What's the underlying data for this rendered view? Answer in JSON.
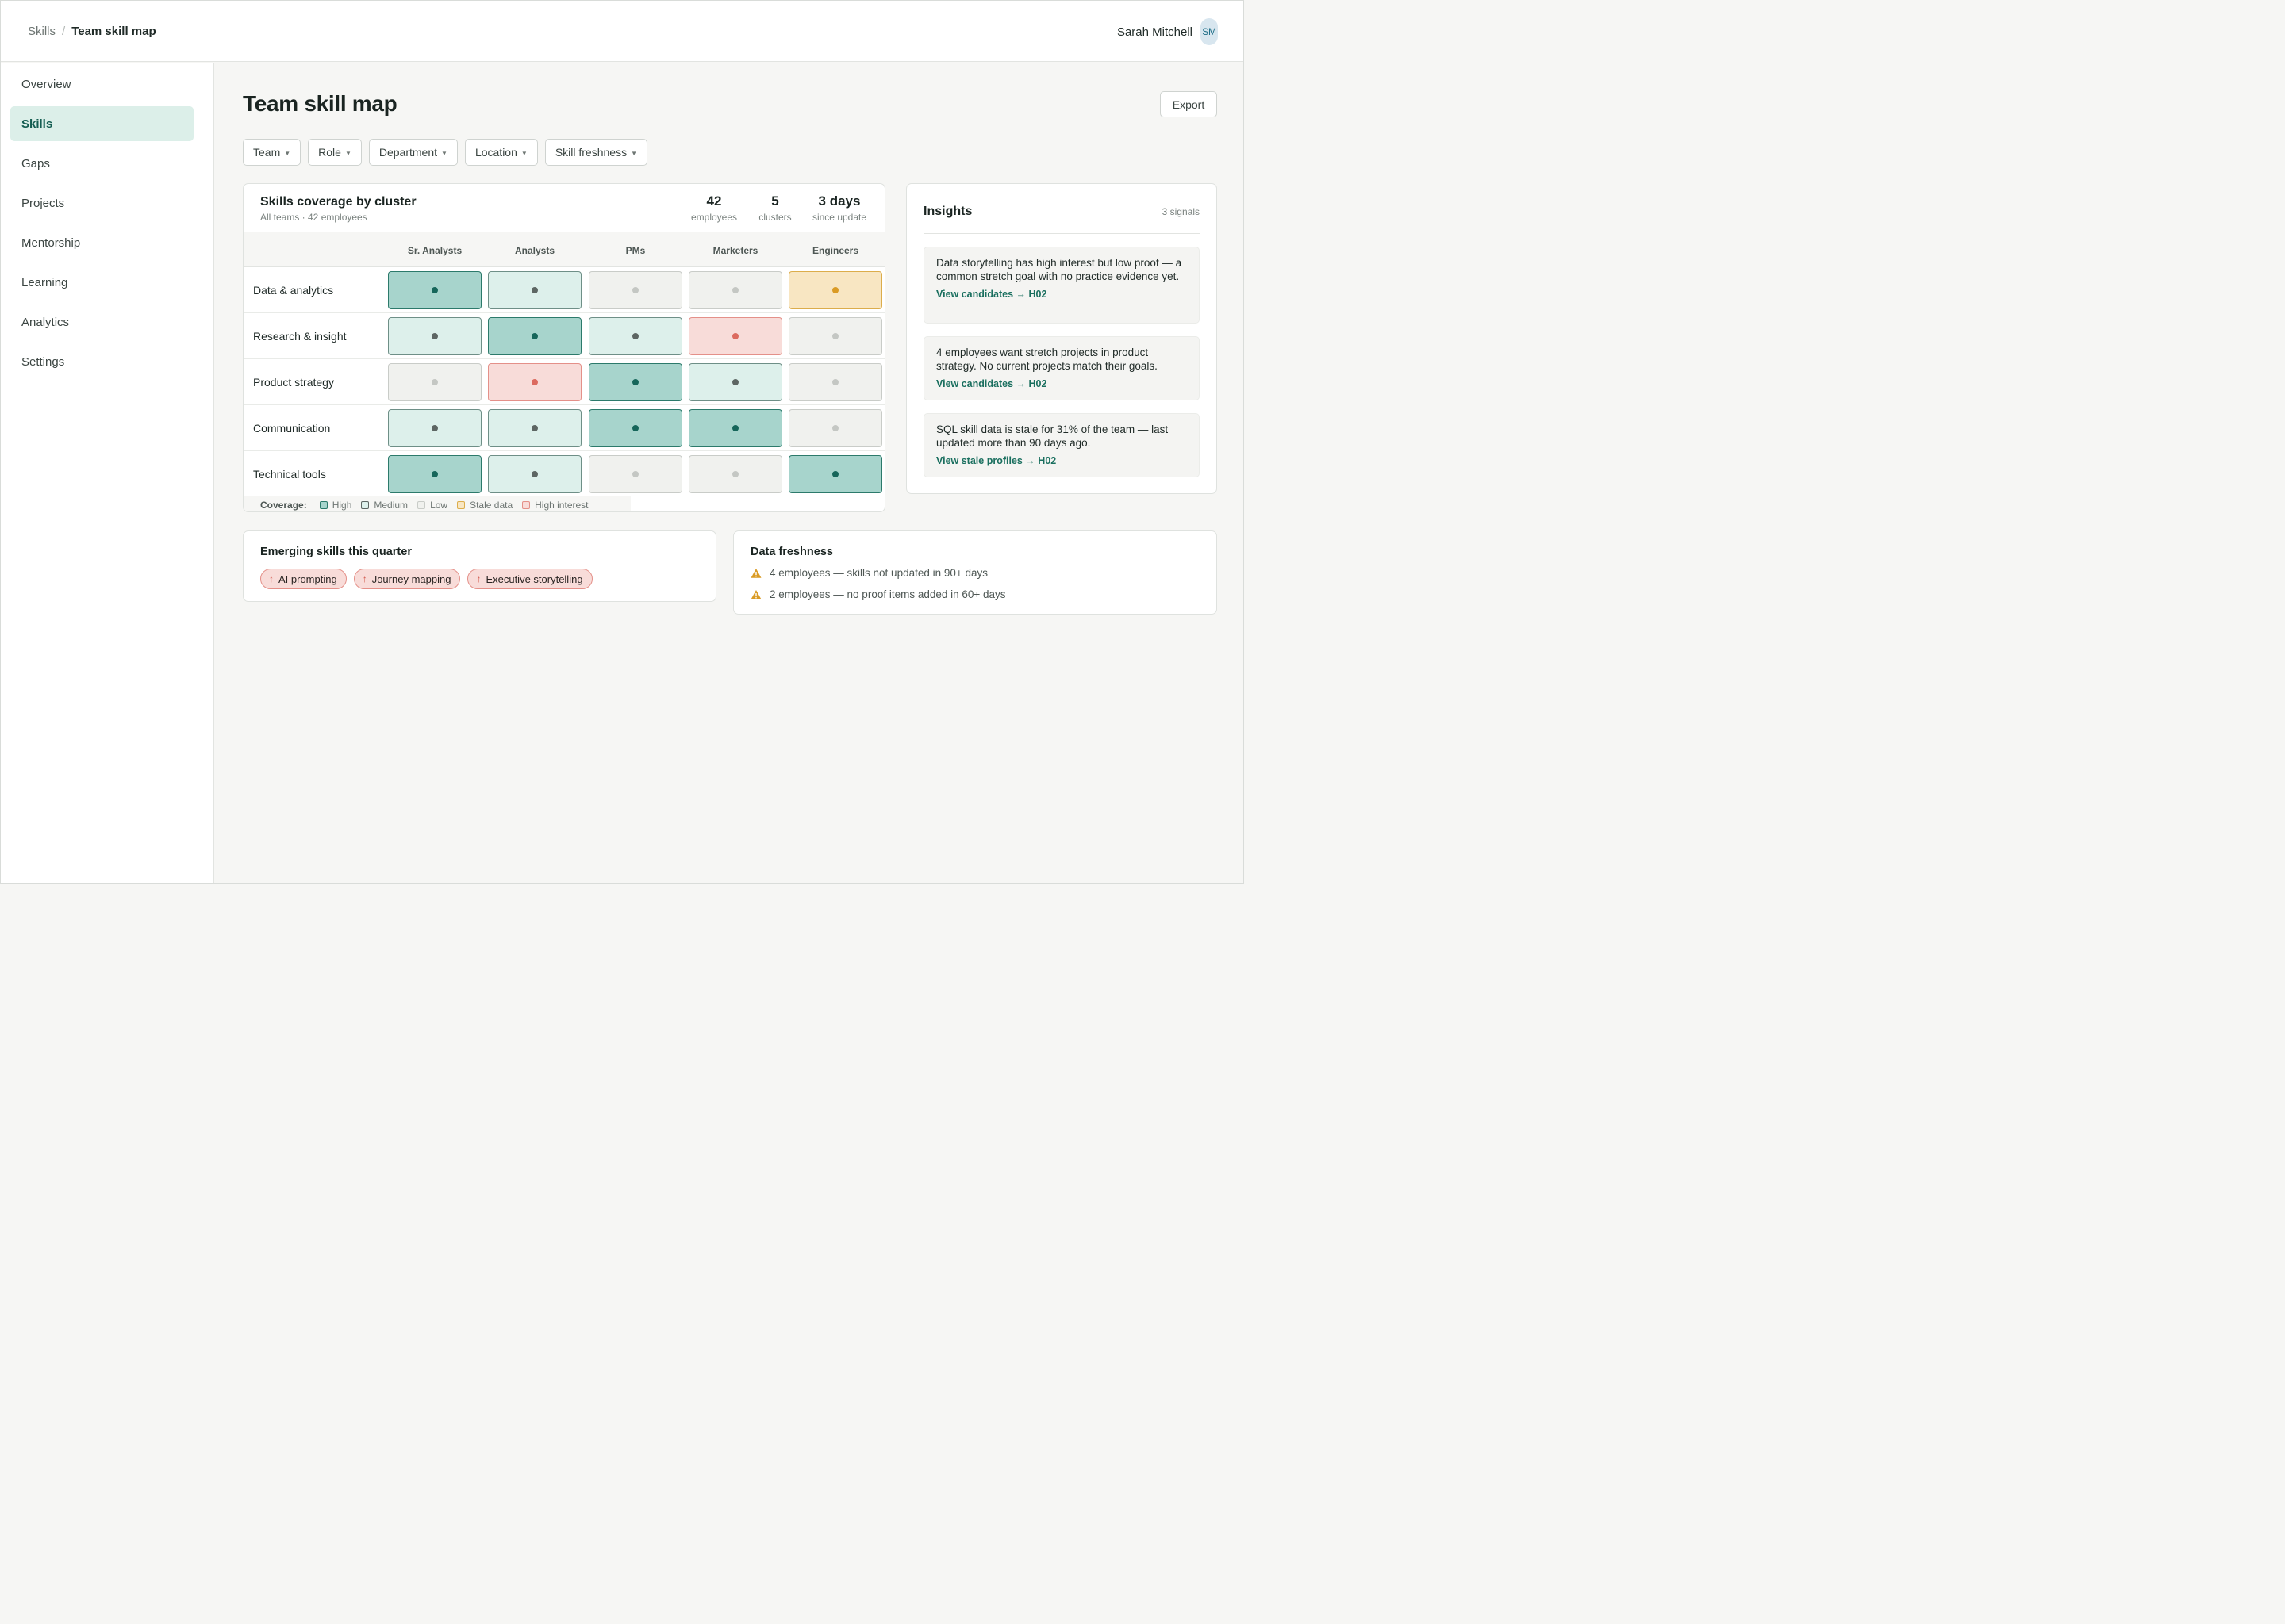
{
  "breadcrumb": {
    "root": "Skills",
    "separator": "/",
    "current": "Team skill map"
  },
  "user": {
    "name": "Sarah Mitchell",
    "initials": "SM"
  },
  "sidebar": {
    "items": [
      {
        "label": "Overview",
        "active": false
      },
      {
        "label": "Skills",
        "active": true
      },
      {
        "label": "Gaps",
        "active": false
      },
      {
        "label": "Projects",
        "active": false
      },
      {
        "label": "Mentorship",
        "active": false
      },
      {
        "label": "Learning",
        "active": false
      },
      {
        "label": "Analytics",
        "active": false
      },
      {
        "label": "Settings",
        "active": false
      }
    ]
  },
  "page": {
    "title": "Team skill map",
    "export_label": "Export"
  },
  "filters": [
    "Team",
    "Role",
    "Department",
    "Location",
    "Skill freshness"
  ],
  "heatmap": {
    "title": "Skills coverage by cluster",
    "subtitle": "All teams · 42 employees",
    "stats": [
      {
        "value": "42",
        "label": "employees"
      },
      {
        "value": "5",
        "label": "clusters"
      },
      {
        "value": "3 days",
        "label": "since update"
      }
    ],
    "columns": [
      "Sr. Analysts",
      "Analysts",
      "PMs",
      "Marketers",
      "Engineers"
    ],
    "rows": [
      {
        "label": "Data & analytics",
        "cells": [
          "high",
          "medium",
          "low",
          "low",
          "stale"
        ]
      },
      {
        "label": "Research & insight",
        "cells": [
          "medium",
          "high",
          "medium",
          "interest",
          "low"
        ]
      },
      {
        "label": "Product strategy",
        "cells": [
          "low",
          "interest",
          "high",
          "medium",
          "low"
        ]
      },
      {
        "label": "Communication",
        "cells": [
          "medium",
          "medium",
          "high",
          "high",
          "low"
        ]
      },
      {
        "label": "Technical tools",
        "cells": [
          "high",
          "medium",
          "low",
          "low",
          "high"
        ]
      }
    ],
    "legend": {
      "label": "Coverage:",
      "items": [
        {
          "key": "high",
          "label": "High"
        },
        {
          "key": "medium",
          "label": "Medium"
        },
        {
          "key": "low",
          "label": "Low"
        },
        {
          "key": "stale",
          "label": "Stale data"
        },
        {
          "key": "interest",
          "label": "High interest"
        }
      ]
    }
  },
  "insights": {
    "title": "Insights",
    "count": "3 signals",
    "items": [
      {
        "text": "Data storytelling has high interest but low proof — a common stretch goal with no practice evidence yet.",
        "link": "View candidates → H02"
      },
      {
        "text": "4 employees want stretch projects in product strategy. No current projects match their goals.",
        "link": "View candidates → H02"
      },
      {
        "text": "SQL skill data is stale for 31% of the team — last updated more than 90 days ago.",
        "link": "View stale profiles → H02"
      }
    ]
  },
  "emerging": {
    "title": "Emerging skills this quarter",
    "chips": [
      "AI prompting",
      "Journey mapping",
      "Executive storytelling"
    ]
  },
  "freshness": {
    "title": "Data freshness",
    "items": [
      "4 employees — skills not updated in 90+ days",
      "2 employees — no proof items added in 60+ days"
    ]
  },
  "icons": {
    "chip": "arrow-up-icon",
    "freshness": "warning-triangle-icon"
  },
  "colors": {
    "accent": "#1a6f5f",
    "high": "#a7d4cc",
    "medium": "#ddf0eb",
    "low": "#f0f1ee",
    "stale": "#f8e6c2",
    "interest": "#f8dcd9",
    "warning": "#da9b25"
  }
}
